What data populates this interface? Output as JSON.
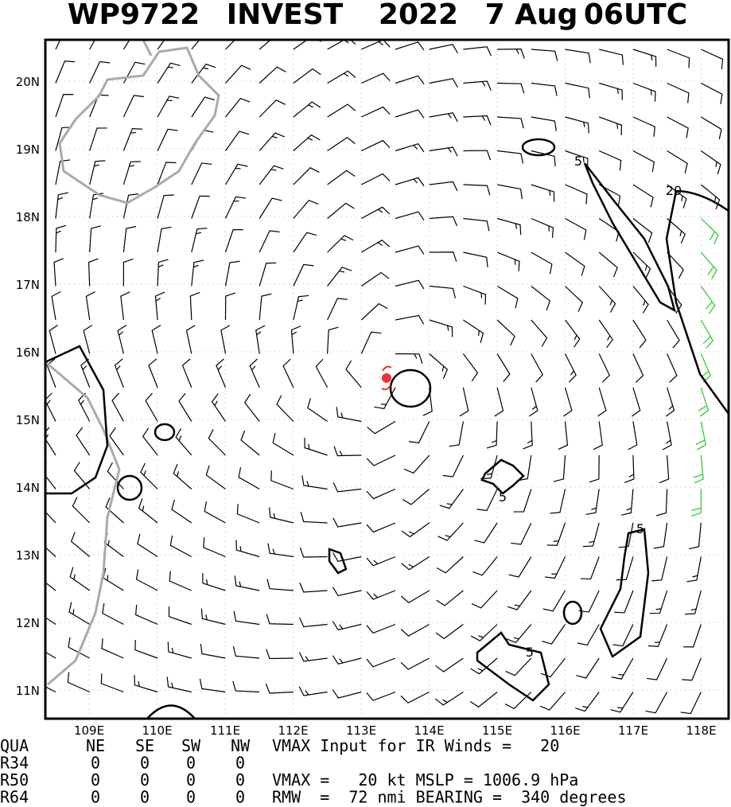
{
  "header": {
    "title": [
      "WP9722",
      "INVEST",
      "2022",
      "7 Aug",
      "06UTC"
    ]
  },
  "axes": {
    "lon": [
      "109E",
      "110E",
      "111E",
      "112E",
      "113E",
      "114E",
      "115E",
      "116E",
      "117E",
      "118E"
    ],
    "lat": [
      "20N",
      "19N",
      "18N",
      "17N",
      "16N",
      "15N",
      "14N",
      "13N",
      "12N",
      "11N"
    ]
  },
  "contour_labels": [
    "5",
    "20",
    "5",
    "5",
    "5"
  ],
  "table": {
    "rows": [
      [
        "QUA",
        "NE",
        "SE",
        "SW",
        "NW"
      ],
      [
        "R34",
        "0",
        "0",
        "0",
        "0"
      ],
      [
        "R50",
        "0",
        "0",
        "0",
        "0"
      ],
      [
        "R64",
        "0",
        "0",
        "0",
        "0"
      ]
    ],
    "notes": [
      "VMAX Input for IR Winds =   20",
      "VMAX =   20 kt MSLP = 1006.9 hPa",
      "RMW  =  72 nmi BEARING =  340 degrees"
    ]
  }
}
